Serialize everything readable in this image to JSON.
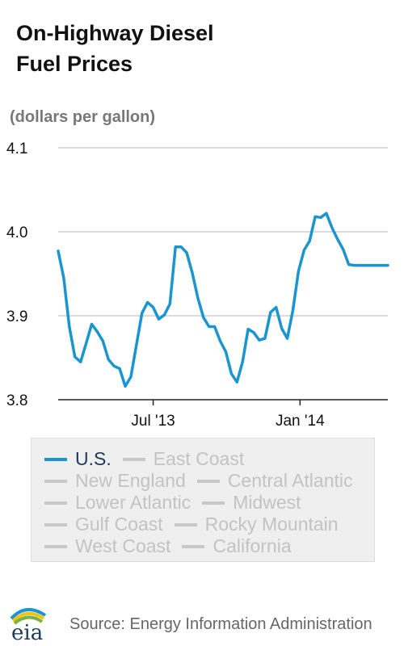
{
  "title_line1": "On-Highway Diesel",
  "title_line2": "Fuel Prices",
  "units": "(dollars per gallon)",
  "source": "Source: Energy Information Administration",
  "logo_text": "eia",
  "colors": {
    "line": "#1a95d0",
    "grid": "#cfcfcf",
    "axis": "#222222",
    "inactive": "#c8c8c8"
  },
  "legend": [
    [
      {
        "label": "U.S.",
        "active": true
      },
      {
        "label": "East Coast",
        "active": false
      }
    ],
    [
      {
        "label": "New England",
        "active": false
      },
      {
        "label": "Central Atlantic",
        "active": false
      }
    ],
    [
      {
        "label": "Lower Atlantic",
        "active": false
      },
      {
        "label": "Midwest",
        "active": false
      }
    ],
    [
      {
        "label": "Gulf Coast",
        "active": false
      },
      {
        "label": "Rocky Mountain",
        "active": false
      }
    ],
    [
      {
        "label": "West Coast",
        "active": false
      },
      {
        "label": "California",
        "active": false
      }
    ]
  ],
  "chart_data": {
    "type": "line",
    "title": "On-Highway Diesel Fuel Prices",
    "ylabel": "(dollars per gallon)",
    "ylim": [
      3.8,
      4.1
    ],
    "yticks": [
      3.8,
      3.9,
      4.0,
      4.1
    ],
    "ytick_labels": [
      "3.8",
      "3.9",
      "4.0",
      "4.1"
    ],
    "xlim": [
      "2013-03-04",
      "2014-04-21"
    ],
    "xticks": [
      {
        "date": "2013-07-01",
        "label": "Jul '13"
      },
      {
        "date": "2014-01-01",
        "label": "Jan '14"
      }
    ],
    "grid": true,
    "series": [
      {
        "name": "U.S.",
        "x": [
          "2013-03-04",
          "2013-03-11",
          "2013-03-18",
          "2013-03-25",
          "2013-04-01",
          "2013-04-08",
          "2013-04-15",
          "2013-04-22",
          "2013-04-29",
          "2013-05-06",
          "2013-05-13",
          "2013-05-20",
          "2013-05-27",
          "2013-06-03",
          "2013-06-10",
          "2013-06-17",
          "2013-06-24",
          "2013-07-01",
          "2013-07-08",
          "2013-07-15",
          "2013-07-22",
          "2013-07-29",
          "2013-08-05",
          "2013-08-12",
          "2013-08-19",
          "2013-08-26",
          "2013-09-02",
          "2013-09-09",
          "2013-09-16",
          "2013-09-23",
          "2013-09-30",
          "2013-10-07",
          "2013-10-14",
          "2013-10-21",
          "2013-10-28",
          "2013-11-04",
          "2013-11-11",
          "2013-11-18",
          "2013-11-25",
          "2013-12-02",
          "2013-12-09",
          "2013-12-16",
          "2013-12-23",
          "2013-12-30",
          "2014-01-06",
          "2014-01-13",
          "2014-01-20",
          "2014-01-27",
          "2014-02-03",
          "2014-02-10",
          "2014-02-17",
          "2014-02-24",
          "2014-03-03",
          "2014-03-10",
          "2014-03-17",
          "2014-03-24",
          "2014-03-31",
          "2014-04-07",
          "2014-04-14",
          "2014-04-21"
        ],
        "values": [
          3.977,
          3.945,
          3.887,
          3.851,
          3.845,
          3.867,
          3.89,
          3.881,
          3.87,
          3.848,
          3.84,
          3.837,
          3.816,
          3.827,
          3.865,
          3.903,
          3.916,
          3.91,
          3.896,
          3.901,
          3.914,
          3.982,
          3.982,
          3.975,
          3.951,
          3.921,
          3.898,
          3.887,
          3.887,
          3.87,
          3.857,
          3.831,
          3.821,
          3.845,
          3.884,
          3.88,
          3.871,
          3.873,
          3.904,
          3.91,
          3.885,
          3.873,
          3.906,
          3.953,
          3.978,
          3.989,
          4.018,
          4.017,
          4.022,
          4.005,
          3.991,
          3.979,
          3.961,
          3.96,
          3.96,
          3.96,
          3.96,
          3.96,
          3.96,
          3.96
        ]
      }
    ]
  }
}
